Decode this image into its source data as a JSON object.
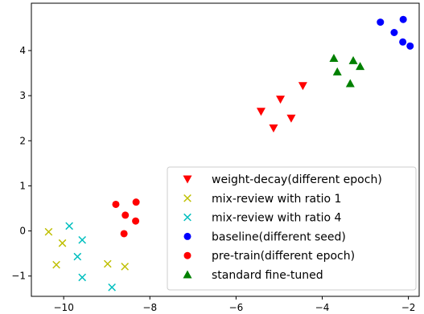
{
  "chart_data": {
    "type": "scatter",
    "title": "",
    "xlabel": "",
    "ylabel": "",
    "xlim": [
      -10.75,
      -1.75
    ],
    "ylim": [
      -1.45,
      5.05
    ],
    "xticks": [
      -10,
      -8,
      -6,
      -4,
      -2
    ],
    "yticks": [
      -1,
      0,
      1,
      2,
      3,
      4
    ],
    "xtick_labels": [
      "−10",
      "−8",
      "−6",
      "−4",
      "−2"
    ],
    "ytick_labels": [
      "−1",
      "0",
      "1",
      "2",
      "3",
      "4"
    ],
    "grid": false,
    "legend_position": "lower-right",
    "series": [
      {
        "name": "weight-decay(different epoch)",
        "marker": "triangle-down",
        "color": "#ff0000",
        "points": [
          [
            -5.42,
            2.65
          ],
          [
            -5.13,
            2.28
          ],
          [
            -4.97,
            2.92
          ],
          [
            -4.72,
            2.5
          ],
          [
            -4.45,
            3.22
          ]
        ]
      },
      {
        "name": "mix-review with ratio 1",
        "marker": "x",
        "color": "#bfbf00",
        "points": [
          [
            -10.35,
            -0.02
          ],
          [
            -10.03,
            -0.27
          ],
          [
            -10.17,
            -0.75
          ],
          [
            -8.98,
            -0.73
          ],
          [
            -8.58,
            -0.79
          ]
        ]
      },
      {
        "name": "mix-review with ratio 4",
        "marker": "x",
        "color": "#00bfbf",
        "points": [
          [
            -9.87,
            0.11
          ],
          [
            -9.57,
            -0.2
          ],
          [
            -9.68,
            -0.57
          ],
          [
            -9.57,
            -1.03
          ],
          [
            -8.88,
            -1.25
          ]
        ]
      },
      {
        "name": "baseline(different seed)",
        "marker": "circle",
        "color": "#0000ff",
        "points": [
          [
            -2.65,
            4.63
          ],
          [
            -2.33,
            4.4
          ],
          [
            -2.12,
            4.69
          ],
          [
            -2.13,
            4.19
          ],
          [
            -1.96,
            4.1
          ]
        ]
      },
      {
        "name": "pre-train(different epoch)",
        "marker": "circle",
        "color": "#ff0000",
        "points": [
          [
            -8.79,
            0.59
          ],
          [
            -8.32,
            0.64
          ],
          [
            -8.57,
            0.35
          ],
          [
            -8.33,
            0.22
          ],
          [
            -8.6,
            -0.06
          ]
        ]
      },
      {
        "name": "standard fine-tuned",
        "marker": "triangle-up",
        "color": "#008000",
        "points": [
          [
            -3.73,
            3.83
          ],
          [
            -3.65,
            3.53
          ],
          [
            -3.28,
            3.78
          ],
          [
            -3.12,
            3.65
          ],
          [
            -3.35,
            3.27
          ]
        ]
      }
    ]
  }
}
